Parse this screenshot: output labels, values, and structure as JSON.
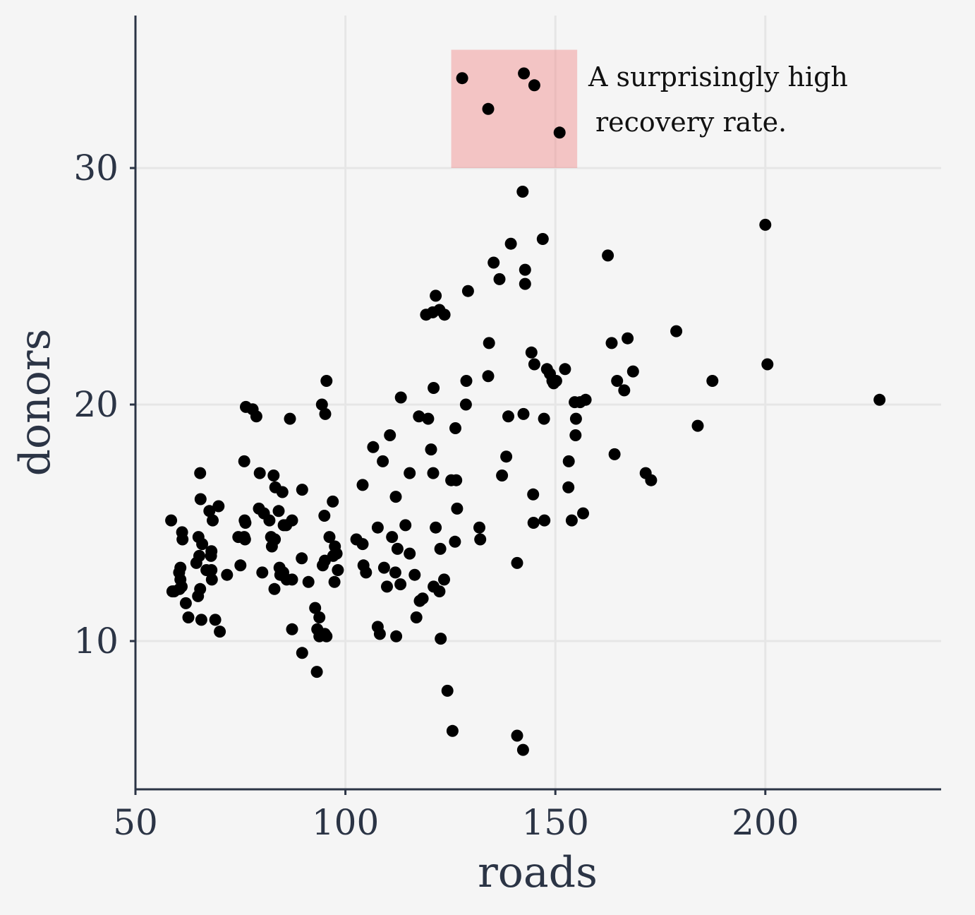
{
  "chart_data": {
    "type": "scatter",
    "title": "",
    "xlabel": "roads",
    "ylabel": "donors",
    "xlim": [
      50,
      240
    ],
    "ylim": [
      4.5,
      37.2
    ],
    "x_ticks": [
      50,
      100,
      150,
      200
    ],
    "y_ticks": [
      10,
      20,
      30
    ],
    "grid": true,
    "colors": {
      "point": "#000000",
      "highlight": "#f08080",
      "axis": "#2b3445",
      "grid": "#e6e6e6",
      "background": "#f5f5f5"
    },
    "annotation": {
      "text_line1": "A surprisingly high",
      "text_line2": "recovery rate.",
      "rect": {
        "x0": 125.2,
        "x1": 155.2,
        "y0": 30.0,
        "y1": 35.0
      }
    },
    "points": [
      [
        58.5,
        15.1
      ],
      [
        61.1,
        14.6
      ],
      [
        61.2,
        14.3
      ],
      [
        65.0,
        14.4
      ],
      [
        65.9,
        14.1
      ],
      [
        68.1,
        13.8
      ],
      [
        68.0,
        13.6
      ],
      [
        65.2,
        13.6
      ],
      [
        64.5,
        13.3
      ],
      [
        60.7,
        13.1
      ],
      [
        60.4,
        12.9
      ],
      [
        66.9,
        13.0
      ],
      [
        68.1,
        13.0
      ],
      [
        71.8,
        12.8
      ],
      [
        60.7,
        12.6
      ],
      [
        61.0,
        12.3
      ],
      [
        60.5,
        12.2
      ],
      [
        59.2,
        12.1
      ],
      [
        58.8,
        12.1
      ],
      [
        62.0,
        11.6
      ],
      [
        64.9,
        11.9
      ],
      [
        65.4,
        12.2
      ],
      [
        68.2,
        12.6
      ],
      [
        62.6,
        11.0
      ],
      [
        65.7,
        10.9
      ],
      [
        69.0,
        10.9
      ],
      [
        70.1,
        10.4
      ],
      [
        65.4,
        17.1
      ],
      [
        65.5,
        16.0
      ],
      [
        67.6,
        15.5
      ],
      [
        69.8,
        15.7
      ],
      [
        68.4,
        15.1
      ],
      [
        75.9,
        17.6
      ],
      [
        76.3,
        19.9
      ],
      [
        77.9,
        19.8
      ],
      [
        78.8,
        19.5
      ],
      [
        79.6,
        17.1
      ],
      [
        76.0,
        15.1
      ],
      [
        76.2,
        15.0
      ],
      [
        74.5,
        14.4
      ],
      [
        75.9,
        14.4
      ],
      [
        76.1,
        14.3
      ],
      [
        79.4,
        15.6
      ],
      [
        80.6,
        15.4
      ],
      [
        82.3,
        14.4
      ],
      [
        83.2,
        14.3
      ],
      [
        82.5,
        14.0
      ],
      [
        82.9,
        17.0
      ],
      [
        83.3,
        16.5
      ],
      [
        85.0,
        16.3
      ],
      [
        81.9,
        15.1
      ],
      [
        84.1,
        15.5
      ],
      [
        85.3,
        14.9
      ],
      [
        85.9,
        14.9
      ],
      [
        87.3,
        15.1
      ],
      [
        86.8,
        19.4
      ],
      [
        89.7,
        16.4
      ],
      [
        75.0,
        13.2
      ],
      [
        80.2,
        12.9
      ],
      [
        84.3,
        13.1
      ],
      [
        84.5,
        12.8
      ],
      [
        85.2,
        12.9
      ],
      [
        86.0,
        12.6
      ],
      [
        87.3,
        12.6
      ],
      [
        83.1,
        12.2
      ],
      [
        89.6,
        13.5
      ],
      [
        91.2,
        12.5
      ],
      [
        87.3,
        10.5
      ],
      [
        89.7,
        9.5
      ],
      [
        92.8,
        11.4
      ],
      [
        93.3,
        10.5
      ],
      [
        93.8,
        10.2
      ],
      [
        93.8,
        11.0
      ],
      [
        95.1,
        10.3
      ],
      [
        95.5,
        10.2
      ],
      [
        93.2,
        8.7
      ],
      [
        94.4,
        20.0
      ],
      [
        95.5,
        21.0
      ],
      [
        95.2,
        19.6
      ],
      [
        95.0,
        15.3
      ],
      [
        97.0,
        15.9
      ],
      [
        96.2,
        14.4
      ],
      [
        97.5,
        14.0
      ],
      [
        97.9,
        13.7
      ],
      [
        97.1,
        13.6
      ],
      [
        95.1,
        13.4
      ],
      [
        94.6,
        13.2
      ],
      [
        98.2,
        13.0
      ],
      [
        97.4,
        12.5
      ],
      [
        102.6,
        14.3
      ],
      [
        104.1,
        14.1
      ],
      [
        104.1,
        16.6
      ],
      [
        104.3,
        13.2
      ],
      [
        104.9,
        12.9
      ],
      [
        106.6,
        18.2
      ],
      [
        107.7,
        14.8
      ],
      [
        108.9,
        17.6
      ],
      [
        109.2,
        13.1
      ],
      [
        109.9,
        12.3
      ],
      [
        110.6,
        18.7
      ],
      [
        111.1,
        14.4
      ],
      [
        112.4,
        13.9
      ],
      [
        111.9,
        12.9
      ],
      [
        113.1,
        12.4
      ],
      [
        112.0,
        16.1
      ],
      [
        113.2,
        20.3
      ],
      [
        114.3,
        14.9
      ],
      [
        115.3,
        13.7
      ],
      [
        115.3,
        17.1
      ],
      [
        116.5,
        12.8
      ],
      [
        117.5,
        19.5
      ],
      [
        116.9,
        11.0
      ],
      [
        117.7,
        11.7
      ],
      [
        118.4,
        11.8
      ],
      [
        107.7,
        10.6
      ],
      [
        108.2,
        10.3
      ],
      [
        112.1,
        10.2
      ],
      [
        119.7,
        19.4
      ],
      [
        120.4,
        18.1
      ],
      [
        120.9,
        17.1
      ],
      [
        121.5,
        14.8
      ],
      [
        121.0,
        12.3
      ],
      [
        121.0,
        20.7
      ],
      [
        122.4,
        12.1
      ],
      [
        122.6,
        13.9
      ],
      [
        123.5,
        12.6
      ],
      [
        120.8,
        23.9
      ],
      [
        119.2,
        23.8
      ],
      [
        121.5,
        24.6
      ],
      [
        122.4,
        24.0
      ],
      [
        123.6,
        23.8
      ],
      [
        125.2,
        16.8
      ],
      [
        126.4,
        16.8
      ],
      [
        126.2,
        19.0
      ],
      [
        126.6,
        15.6
      ],
      [
        126.1,
        14.2
      ],
      [
        122.7,
        10.1
      ],
      [
        124.3,
        7.9
      ],
      [
        125.5,
        6.2
      ],
      [
        128.8,
        21.0
      ],
      [
        128.7,
        20.0
      ],
      [
        129.2,
        24.8
      ],
      [
        131.9,
        14.8
      ],
      [
        132.1,
        14.3
      ],
      [
        134.0,
        21.2
      ],
      [
        134.2,
        22.6
      ],
      [
        135.3,
        26.0
      ],
      [
        136.7,
        25.3
      ],
      [
        138.8,
        19.5
      ],
      [
        137.3,
        17.0
      ],
      [
        138.3,
        17.8
      ],
      [
        139.4,
        26.8
      ],
      [
        140.9,
        13.3
      ],
      [
        142.4,
        19.6
      ],
      [
        142.8,
        25.7
      ],
      [
        142.8,
        25.1
      ],
      [
        142.2,
        29.0
      ],
      [
        144.3,
        22.2
      ],
      [
        145.0,
        21.7
      ],
      [
        144.7,
        16.2
      ],
      [
        144.8,
        15.0
      ],
      [
        147.0,
        27.0
      ],
      [
        147.3,
        19.4
      ],
      [
        147.4,
        15.1
      ],
      [
        148.0,
        21.5
      ],
      [
        148.7,
        21.3
      ],
      [
        149.3,
        21.0
      ],
      [
        149.6,
        20.9
      ],
      [
        150.2,
        21.0
      ],
      [
        152.3,
        21.5
      ],
      [
        153.1,
        16.5
      ],
      [
        153.2,
        17.6
      ],
      [
        153.9,
        15.1
      ],
      [
        154.6,
        20.1
      ],
      [
        154.9,
        19.4
      ],
      [
        154.8,
        18.7
      ],
      [
        155.9,
        20.1
      ],
      [
        156.6,
        15.4
      ],
      [
        157.2,
        20.2
      ],
      [
        140.9,
        6.0
      ],
      [
        142.3,
        5.4
      ],
      [
        162.5,
        26.3
      ],
      [
        163.4,
        22.6
      ],
      [
        164.1,
        17.9
      ],
      [
        164.7,
        21.0
      ],
      [
        166.4,
        20.6
      ],
      [
        167.2,
        22.8
      ],
      [
        168.5,
        21.4
      ],
      [
        171.5,
        17.1
      ],
      [
        172.8,
        16.8
      ],
      [
        178.8,
        23.1
      ],
      [
        183.9,
        19.1
      ],
      [
        187.4,
        21.0
      ],
      [
        200.0,
        27.6
      ],
      [
        200.5,
        21.7
      ],
      [
        227.2,
        20.2
      ],
      [
        127.8,
        33.8
      ],
      [
        134.0,
        32.5
      ],
      [
        142.5,
        34.0
      ],
      [
        145.0,
        33.5
      ],
      [
        151.0,
        31.5
      ]
    ]
  }
}
